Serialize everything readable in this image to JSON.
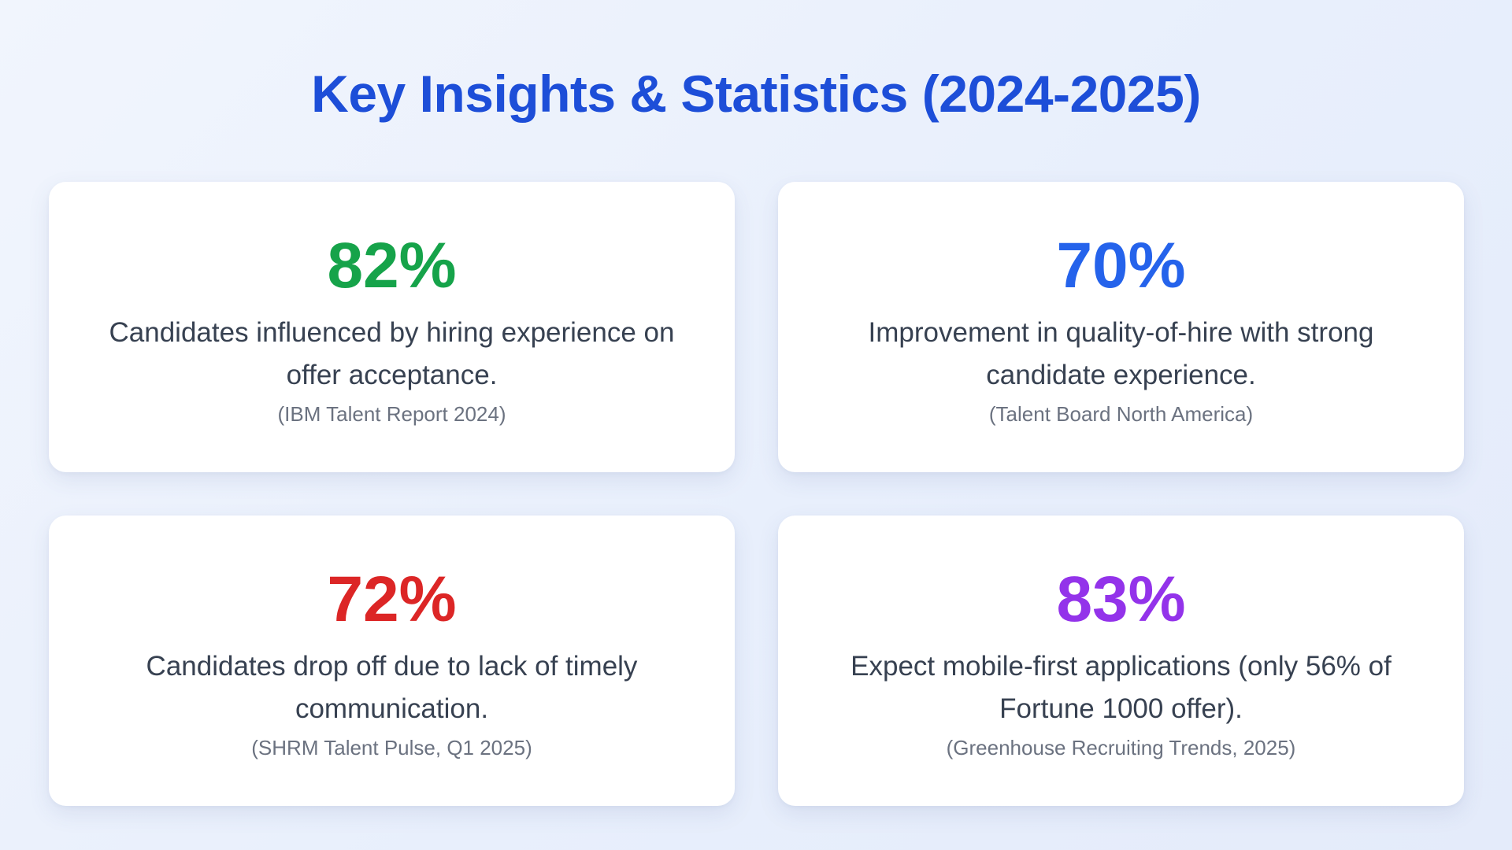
{
  "title": "Key Insights & Statistics (2024-2025)",
  "colors": {
    "title": "#1d4ed8",
    "green": "#16a34a",
    "blue": "#2563eb",
    "red": "#dc2626",
    "purple": "#9333ea"
  },
  "cards": [
    {
      "value": "82%",
      "description": "Candidates influenced by hiring experience on offer acceptance.",
      "source": "(IBM Talent Report 2024)",
      "color": "#16a34a"
    },
    {
      "value": "70%",
      "description": "Improvement in quality-of-hire with strong candidate experience.",
      "source": "(Talent Board North America)",
      "color": "#2563eb"
    },
    {
      "value": "72%",
      "description": "Candidates drop off due to lack of timely communication.",
      "source": "(SHRM Talent Pulse, Q1 2025)",
      "color": "#dc2626"
    },
    {
      "value": "83%",
      "description": "Expect mobile-first applications (only 56% of Fortune 1000 offer).",
      "source": "(Greenhouse Recruiting Trends, 2025)",
      "color": "#9333ea"
    }
  ]
}
